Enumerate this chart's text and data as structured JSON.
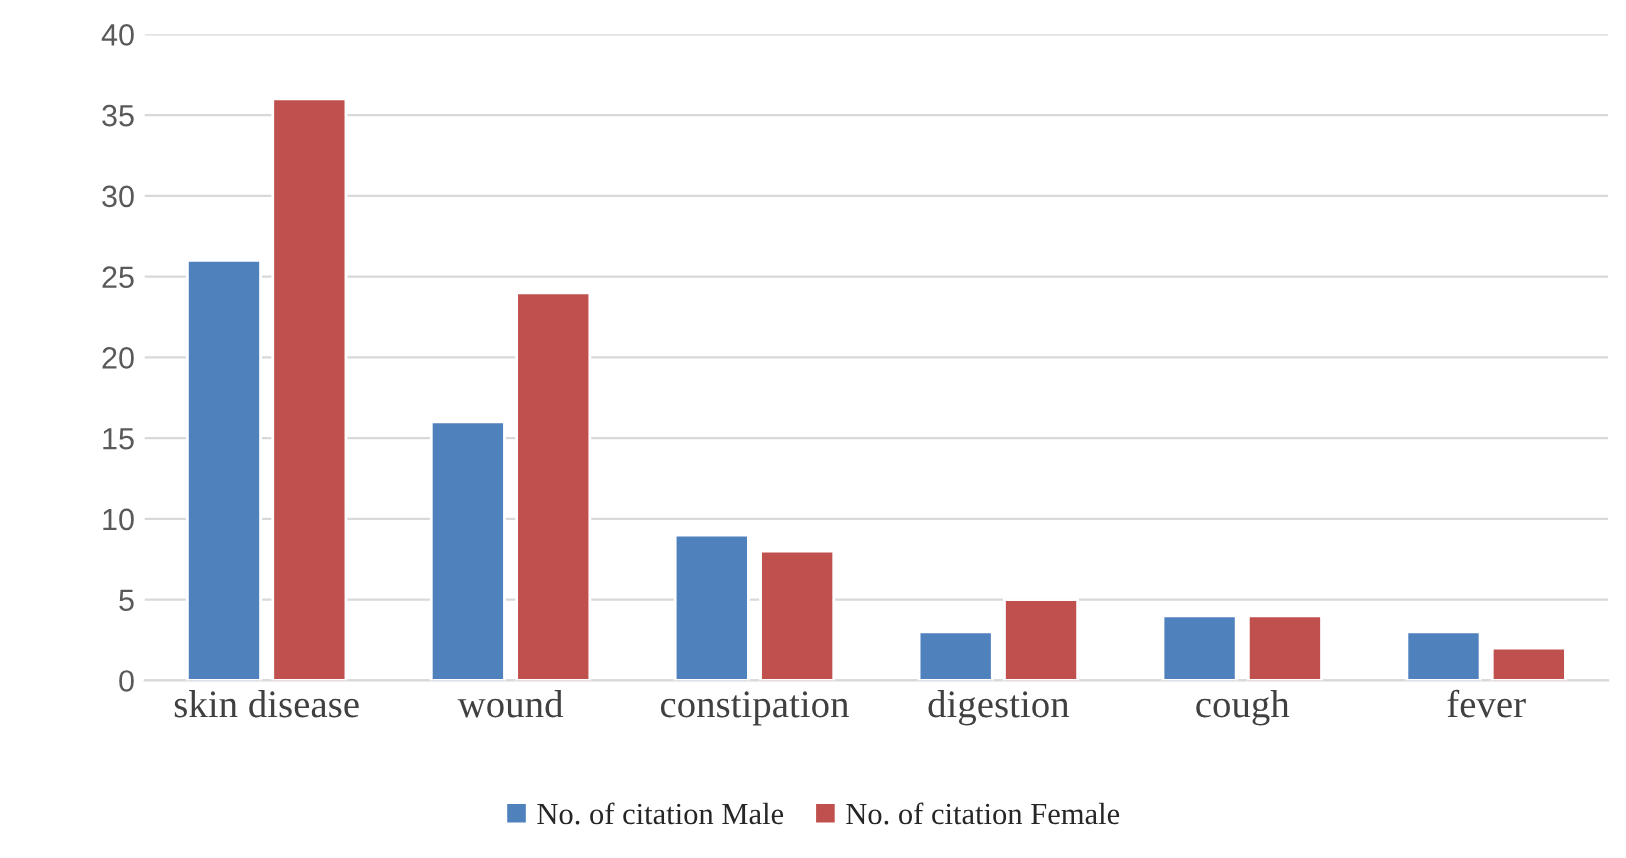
{
  "chart_data": {
    "type": "bar",
    "categories": [
      "skin disease",
      "wound",
      "constipation",
      "digestion",
      "cough",
      "fever"
    ],
    "series": [
      {
        "name": "No. of citation Male",
        "color": "#4f81bd",
        "values": [
          26,
          16,
          9,
          3,
          4,
          3
        ]
      },
      {
        "name": "No. of citation Female",
        "color": "#c0504d",
        "values": [
          36,
          24,
          8,
          5,
          4,
          2
        ]
      }
    ],
    "ylim": [
      0,
      40
    ],
    "yticks": [
      0,
      5,
      10,
      15,
      20,
      25,
      30,
      35,
      40
    ],
    "grid": "y",
    "legend": "bottom"
  }
}
